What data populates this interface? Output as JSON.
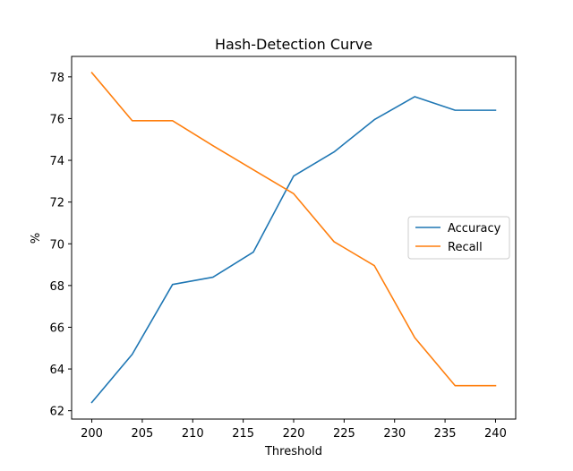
{
  "chart_data": {
    "type": "line",
    "title": "Hash-Detection Curve",
    "xlabel": "Threshold",
    "ylabel": "%",
    "x": [
      200,
      204,
      208,
      212,
      216,
      220,
      224,
      228,
      232,
      236,
      240
    ],
    "series": [
      {
        "name": "Accuracy",
        "color": "#1f77b4",
        "values": [
          62.4,
          64.7,
          68.05,
          68.4,
          69.6,
          73.25,
          74.4,
          75.95,
          77.05,
          76.4,
          76.4
        ]
      },
      {
        "name": "Recall",
        "color": "#ff7f0e",
        "values": [
          78.2,
          75.9,
          75.9,
          74.7,
          73.55,
          72.4,
          70.1,
          68.95,
          65.5,
          63.2,
          63.2
        ]
      }
    ],
    "xlim": [
      198,
      242
    ],
    "ylim": [
      61.6,
      78.98
    ],
    "xticks": [
      200,
      205,
      210,
      215,
      220,
      225,
      230,
      235,
      240
    ],
    "yticks": [
      62,
      64,
      66,
      68,
      70,
      72,
      74,
      76,
      78
    ],
    "grid": false,
    "legend_position": "center-right"
  }
}
